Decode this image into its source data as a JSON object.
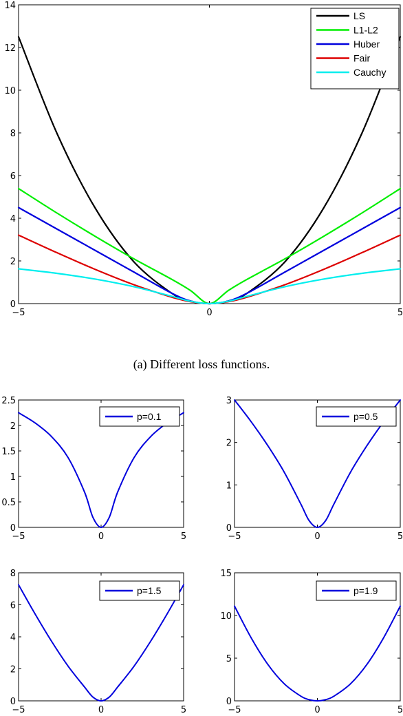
{
  "chart_data": [
    {
      "type": "line",
      "panel": "main",
      "caption": "(a) Different loss functions.",
      "xlim": [
        -5,
        5
      ],
      "ylim": [
        0,
        14
      ],
      "xticks": [
        "−5",
        "0",
        "5"
      ],
      "yticks": [
        "0",
        "2",
        "4",
        "6",
        "8",
        "10",
        "12",
        "14"
      ],
      "legend_position": "top-right",
      "grid": false,
      "x": [
        -5,
        -4,
        -3,
        -2,
        -1,
        -0.5,
        0,
        0.5,
        1,
        2,
        3,
        4,
        5
      ],
      "series": [
        {
          "name": "LS",
          "color": "#000000",
          "values": [
            12.5,
            8.0,
            4.5,
            2.0,
            0.5,
            0.125,
            0,
            0.125,
            0.5,
            2.0,
            4.5,
            8.0,
            12.5
          ]
        },
        {
          "name": "L1-L2",
          "color": "#00ee00",
          "values": [
            5.39,
            4.25,
            3.16,
            2.12,
            1.15,
            0.62,
            0,
            0.62,
            1.15,
            2.12,
            3.16,
            4.25,
            5.39
          ]
        },
        {
          "name": "Huber",
          "color": "#0000dd",
          "values": [
            4.5,
            3.5,
            2.5,
            1.5,
            0.5,
            0.125,
            0,
            0.125,
            0.5,
            1.5,
            2.5,
            3.5,
            4.5
          ]
        },
        {
          "name": "Fair",
          "color": "#dd0000",
          "values": [
            3.21,
            2.39,
            1.61,
            0.9,
            0.31,
            0.09,
            0,
            0.09,
            0.31,
            0.9,
            1.61,
            2.39,
            3.21
          ]
        },
        {
          "name": "Cauchy",
          "color": "#00eeee",
          "values": [
            1.63,
            1.42,
            1.15,
            0.8,
            0.35,
            0.11,
            0,
            0.11,
            0.35,
            0.8,
            1.15,
            1.42,
            1.63
          ]
        }
      ]
    },
    {
      "type": "line",
      "panel": "p01",
      "xlim": [
        -5,
        5
      ],
      "ylim": [
        0,
        2.5
      ],
      "xticks": [
        "−5",
        "0",
        "5"
      ],
      "yticks": [
        "0",
        "0.5",
        "1",
        "1.5",
        "2",
        "2.5"
      ],
      "legend_position": "top-right",
      "x": [
        -5,
        -4,
        -3,
        -2,
        -1,
        -0.5,
        0,
        0.5,
        1,
        2,
        3,
        4,
        5
      ],
      "series": [
        {
          "name": "p=0.1",
          "color": "#0000dd",
          "values": [
            2.25,
            2.05,
            1.78,
            1.37,
            0.69,
            0.2,
            0,
            0.2,
            0.69,
            1.37,
            1.78,
            2.05,
            2.25
          ]
        }
      ]
    },
    {
      "type": "line",
      "panel": "p05",
      "xlim": [
        -5,
        5
      ],
      "ylim": [
        0,
        3
      ],
      "xticks": [
        "−5",
        "0",
        "5"
      ],
      "yticks": [
        "0",
        "1",
        "2",
        "3"
      ],
      "legend_position": "top-right",
      "x": [
        -5,
        -4,
        -3,
        -2,
        -1,
        -0.5,
        0,
        0.5,
        1,
        2,
        3,
        4,
        5
      ],
      "series": [
        {
          "name": "p=0.5",
          "color": "#0000dd",
          "values": [
            3.0,
            2.49,
            1.93,
            1.3,
            0.55,
            0.16,
            0,
            0.16,
            0.55,
            1.3,
            1.93,
            2.49,
            3.0
          ]
        }
      ]
    },
    {
      "type": "line",
      "panel": "p15",
      "xlim": [
        -5,
        5
      ],
      "ylim": [
        0,
        8
      ],
      "xticks": [
        "−5",
        "0",
        "5"
      ],
      "yticks": [
        "0",
        "2",
        "4",
        "6",
        "8"
      ],
      "legend_position": "top-right",
      "x": [
        -5,
        -4,
        -3,
        -2,
        -1,
        -0.5,
        0,
        0.5,
        1,
        2,
        3,
        4,
        5
      ],
      "series": [
        {
          "name": "p=1.5",
          "color": "#0000dd",
          "values": [
            7.25,
            5.43,
            3.72,
            2.17,
            0.86,
            0.24,
            0,
            0.24,
            0.86,
            2.17,
            3.72,
            5.43,
            7.25
          ]
        }
      ]
    },
    {
      "type": "line",
      "panel": "p19",
      "xlim": [
        -5,
        5
      ],
      "ylim": [
        0,
        15
      ],
      "xticks": [
        "−5",
        "0",
        "5"
      ],
      "yticks": [
        "0",
        "5",
        "10",
        "15"
      ],
      "legend_position": "top-right",
      "x": [
        -5,
        -4,
        -3,
        -2,
        -1,
        -0.5,
        0,
        0.5,
        1,
        2,
        3,
        4,
        5
      ],
      "series": [
        {
          "name": "p=1.9",
          "color": "#0000dd",
          "values": [
            11.1,
            7.4,
            4.3,
            2.0,
            0.55,
            0.14,
            0,
            0.14,
            0.55,
            2.0,
            4.3,
            7.4,
            11.1
          ]
        }
      ]
    }
  ]
}
